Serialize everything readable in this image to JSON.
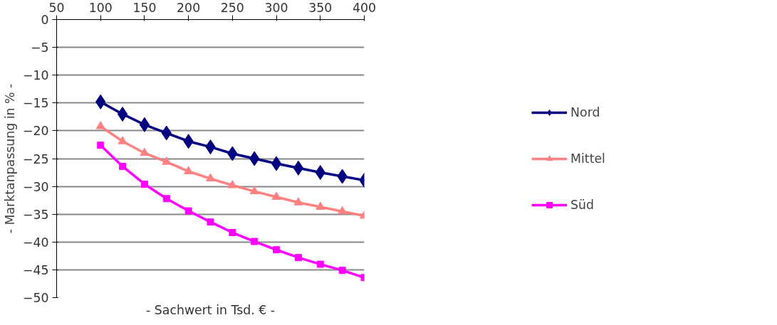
{
  "chart_data": {
    "type": "line",
    "xlabel": "- Sachwert in Tsd. € -",
    "ylabel": "- Marktanpassung in % -",
    "x": [
      100,
      125,
      150,
      175,
      200,
      225,
      250,
      275,
      300,
      325,
      350,
      375,
      400
    ],
    "xlim": [
      50,
      400
    ],
    "xticks": [
      50,
      100,
      150,
      200,
      250,
      300,
      350,
      400
    ],
    "ylim": [
      -50,
      0
    ],
    "yticks": [
      -50,
      -45,
      -40,
      -35,
      -30,
      -25,
      -20,
      -15,
      -10,
      -5,
      0
    ],
    "grid": "y",
    "legend": "right",
    "line_style": "solid",
    "series": [
      {
        "name": "Nord",
        "color": "#000080",
        "marker": "diamond",
        "values": [
          -14.8,
          -17.0,
          -18.9,
          -20.4,
          -21.9,
          -22.9,
          -24.1,
          -25.0,
          -25.9,
          -26.7,
          -27.5,
          -28.2,
          -28.9
        ]
      },
      {
        "name": "Mittel",
        "color": "#ff8080",
        "marker": "triangle",
        "values": [
          -19.2,
          -21.9,
          -24.0,
          -25.6,
          -27.3,
          -28.6,
          -29.8,
          -30.9,
          -31.9,
          -32.9,
          -33.7,
          -34.5,
          -35.3
        ]
      },
      {
        "name": "Süd",
        "color": "#ff00ff",
        "marker": "square",
        "values": [
          -22.6,
          -26.4,
          -29.6,
          -32.2,
          -34.4,
          -36.4,
          -38.3,
          -39.9,
          -41.4,
          -42.8,
          -44.0,
          -45.1,
          -46.4
        ]
      }
    ]
  }
}
